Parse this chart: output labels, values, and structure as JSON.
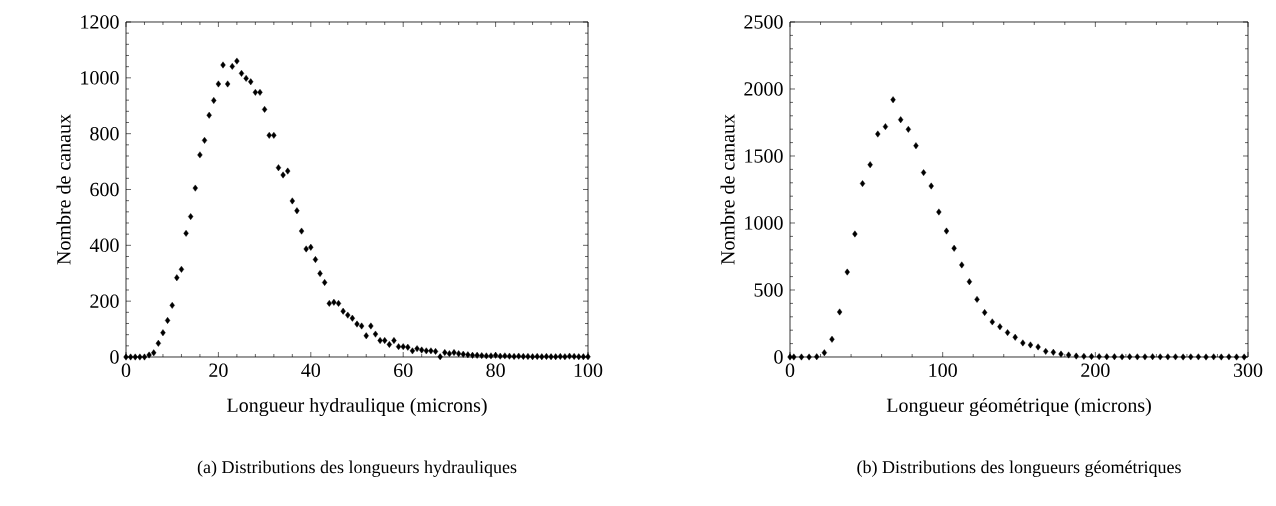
{
  "chart_data": [
    {
      "type": "scatter",
      "xlabel": "Longueur hydraulique (microns)",
      "ylabel": "Nombre de canaux",
      "annotations": [
        "(a) Distributions des longueurs hydrauliques"
      ],
      "color": "#000000",
      "marker": "diamond",
      "x": [
        0,
        1,
        2,
        3,
        4,
        5,
        6,
        7,
        8,
        9,
        10,
        11,
        12,
        13,
        14,
        15,
        16,
        17,
        18,
        19,
        20,
        21,
        22,
        23,
        24,
        25,
        26,
        27,
        28,
        29,
        30,
        31,
        32,
        33,
        34,
        35,
        36,
        37,
        38,
        39,
        40,
        41,
        42,
        43,
        44,
        45,
        46,
        47,
        48,
        49,
        50,
        51,
        52,
        53,
        54,
        55,
        56,
        57,
        58,
        59,
        60,
        61,
        62,
        63,
        64,
        65,
        66,
        67,
        68,
        69,
        70,
        71,
        72,
        73,
        74,
        75,
        76,
        77,
        78,
        79,
        80,
        81,
        82,
        83,
        84,
        85,
        86,
        87,
        88,
        89,
        90,
        91,
        92,
        93,
        94,
        95,
        96,
        97,
        98,
        99,
        100
      ],
      "values": [
        0,
        0,
        0,
        0,
        0,
        7,
        15,
        49,
        87,
        131,
        185,
        284,
        314,
        443,
        503,
        605,
        724,
        776,
        866,
        919,
        978,
        1046,
        978,
        1041,
        1060,
        1016,
        998,
        986,
        948,
        948,
        887,
        794,
        794,
        678,
        652,
        666,
        559,
        524,
        451,
        387,
        393,
        349,
        299,
        267,
        192,
        196,
        192,
        164,
        150,
        139,
        118,
        111,
        76,
        111,
        82,
        59,
        59,
        45,
        59,
        37,
        37,
        35,
        22,
        30,
        25,
        22,
        22,
        20,
        1,
        16,
        12,
        16,
        12,
        10,
        8,
        6,
        6,
        5,
        4,
        4,
        6,
        3,
        4,
        3,
        2,
        3,
        2,
        2,
        1,
        2,
        1,
        2,
        1,
        1,
        2,
        1,
        3,
        2,
        1,
        1,
        1
      ],
      "xlim": [
        0,
        100
      ],
      "xticks": [
        0,
        20,
        40,
        60,
        80,
        100
      ],
      "ylim": [
        0,
        1200
      ],
      "yticks": [
        0,
        200,
        400,
        600,
        800,
        1000,
        1200
      ]
    },
    {
      "type": "scatter",
      "xlabel": "Longueur géométrique (microns)",
      "ylabel": "Nombre de canaux",
      "annotations": [
        "(b) Distributions des longueurs géométriques"
      ],
      "color": "#000000",
      "marker": "diamond",
      "x": [
        0,
        2.5,
        7.5,
        12.5,
        17.5,
        22.5,
        27.5,
        32.5,
        37.5,
        42.5,
        47.5,
        52.5,
        57.5,
        62.5,
        67.5,
        72.5,
        77.5,
        82.5,
        87.5,
        92.5,
        97.5,
        102.5,
        107.5,
        112.5,
        117.5,
        122.5,
        127.5,
        132.5,
        137.5,
        142.5,
        147.5,
        152.5,
        157.5,
        162.5,
        167.5,
        172.5,
        177.5,
        182.5,
        187.5,
        192.5,
        197.5,
        202.5,
        207.5,
        212.5,
        217.5,
        222.5,
        227.5,
        232.5,
        237.5,
        242.5,
        247.5,
        252.5,
        257.5,
        262.5,
        267.5,
        272.5,
        277.5,
        282.5,
        287.5,
        292.5,
        297.5
      ],
      "values": [
        0,
        0,
        0,
        0,
        2,
        32,
        132,
        336,
        634,
        918,
        1294,
        1435,
        1664,
        1719,
        1920,
        1771,
        1699,
        1577,
        1376,
        1276,
        1082,
        940,
        811,
        687,
        562,
        430,
        332,
        262,
        226,
        182,
        147,
        105,
        90,
        75,
        42,
        35,
        22,
        15,
        7,
        5,
        4,
        3,
        2,
        2,
        1,
        2,
        1,
        1,
        2,
        1,
        1,
        1,
        0,
        1,
        1,
        0,
        1,
        0,
        1,
        0,
        0
      ],
      "xlim": [
        0,
        300
      ],
      "xticks": [
        0,
        100,
        200,
        300
      ],
      "ylim": [
        0,
        2500
      ],
      "yticks": [
        0,
        500,
        1000,
        1500,
        2000,
        2500
      ]
    }
  ]
}
